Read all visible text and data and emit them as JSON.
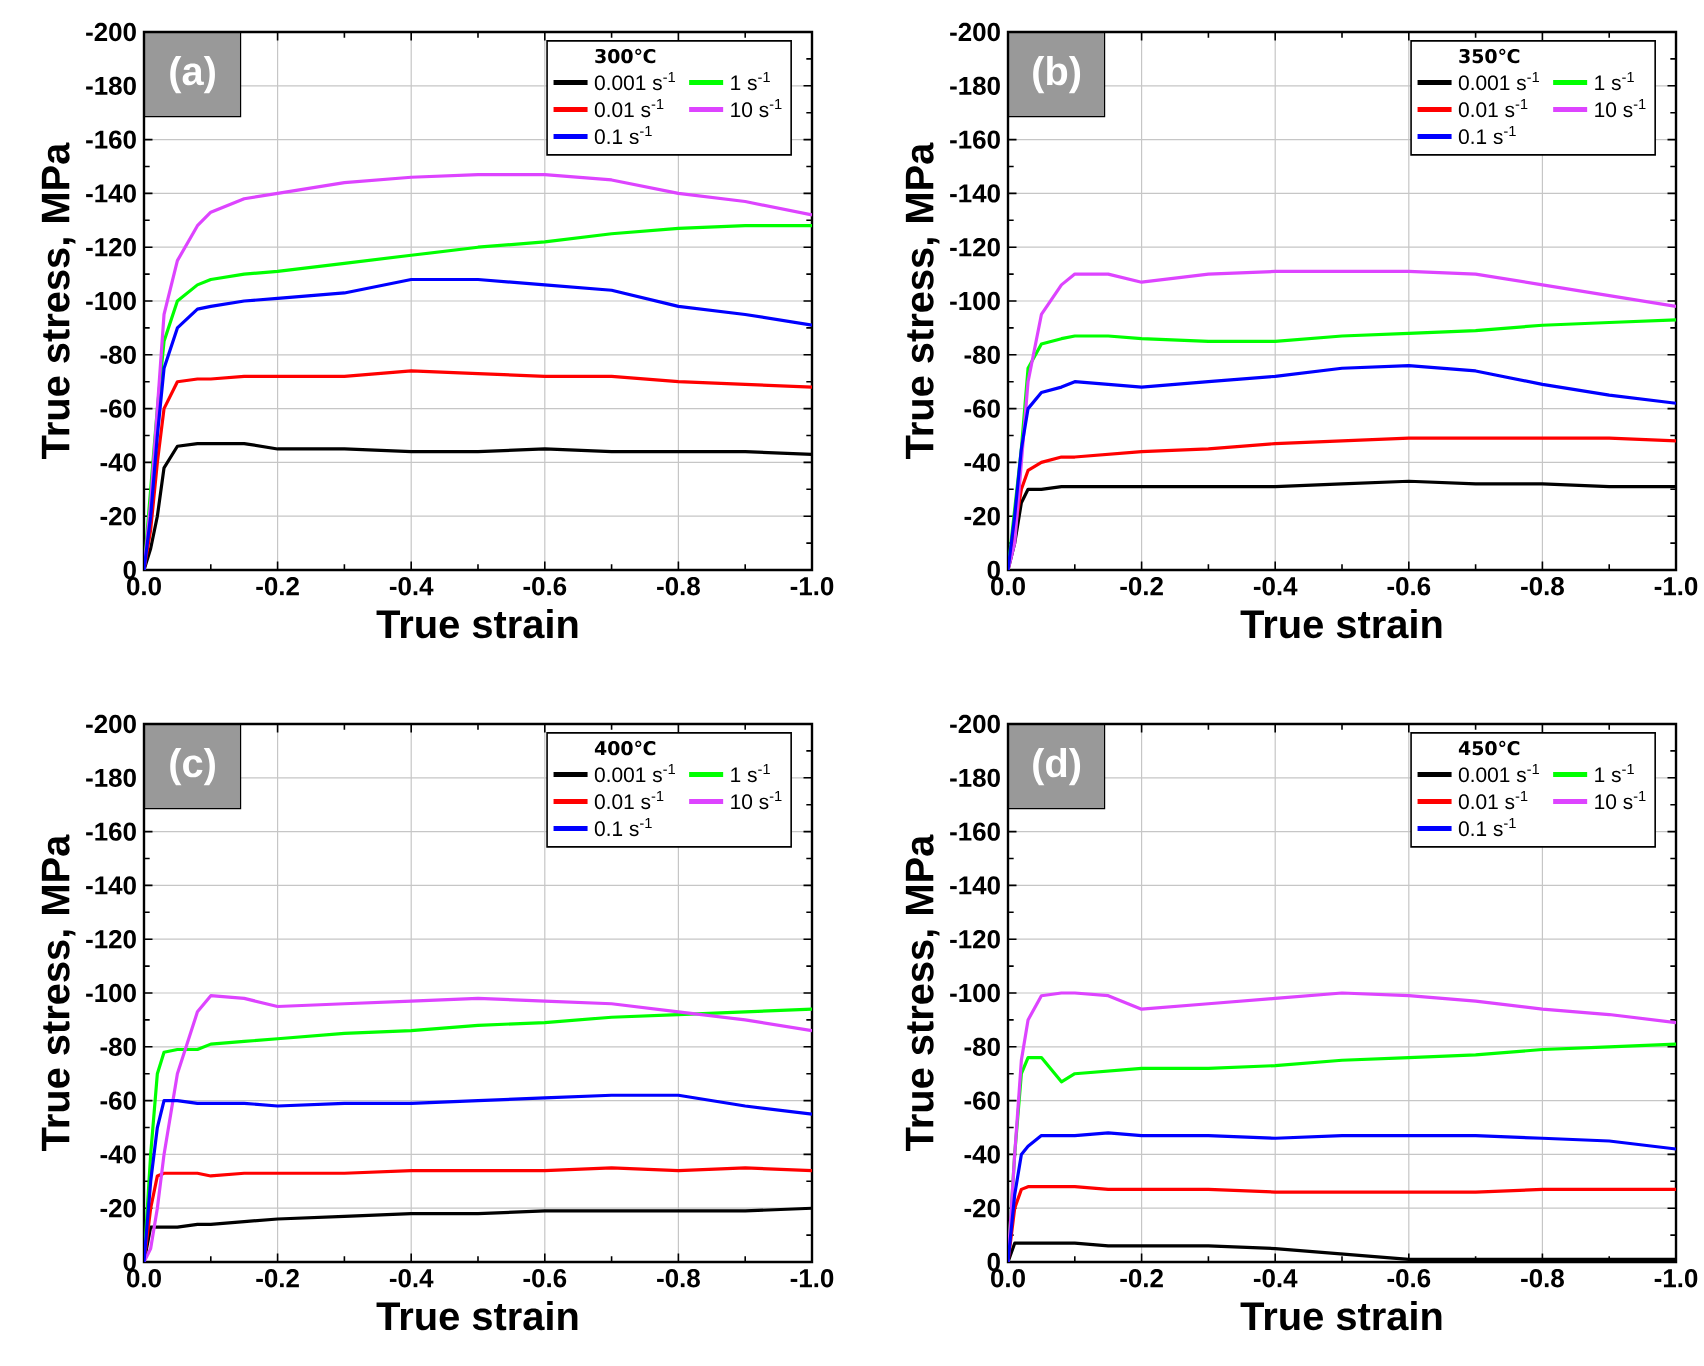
{
  "chart_data": [
    {
      "type": "line",
      "xlabel": "True strain",
      "ylabel": "True stress, MPa",
      "legend_title": "300℃",
      "annotations": [
        "(a)"
      ],
      "xlim": [
        0,
        -1.0
      ],
      "ylim": [
        0,
        -200
      ],
      "xticks": [
        {
          "value": 0,
          "label": "0.0"
        },
        {
          "value": -0.2,
          "label": "-0.2"
        },
        {
          "value": -0.4,
          "label": "-0.4"
        },
        {
          "value": -0.6,
          "label": "-0.6"
        },
        {
          "value": -0.8,
          "label": "-0.8"
        },
        {
          "value": -1.0,
          "label": "-1.0"
        }
      ],
      "yticks": [
        -200,
        -180,
        -160,
        -140,
        -120,
        -100,
        -80,
        -60,
        -40,
        -20,
        0
      ],
      "grid": true,
      "legend": "top right",
      "x": [
        0,
        -0.01,
        -0.02,
        -0.03,
        -0.05,
        -0.08,
        -0.1,
        -0.15,
        -0.2,
        -0.3,
        -0.4,
        -0.5,
        -0.6,
        -0.7,
        -0.8,
        -0.9,
        -1.0
      ],
      "series": [
        {
          "name": "0.001 s$^{-1}$",
          "color": "#000000",
          "values": [
            0,
            -8,
            -20,
            -38,
            -46,
            -47,
            -47,
            -47,
            -45,
            -45,
            -44,
            -44,
            -45,
            -44,
            -44,
            -44,
            -43
          ]
        },
        {
          "name": "0.01 s$^{-1}$",
          "color": "#ff0000",
          "values": [
            0,
            -15,
            -40,
            -60,
            -70,
            -71,
            -71,
            -72,
            -72,
            -72,
            -74,
            -73,
            -72,
            -72,
            -70,
            -69,
            -68
          ]
        },
        {
          "name": "0.1 s$^{-1}$",
          "color": "#0000ff",
          "values": [
            0,
            -20,
            -50,
            -75,
            -90,
            -97,
            -98,
            -100,
            -101,
            -103,
            -108,
            -108,
            -106,
            -104,
            -98,
            -95,
            -91
          ]
        },
        {
          "name": "1 s$^{-1}$",
          "color": "#00ff00",
          "values": [
            0,
            -30,
            -60,
            -85,
            -100,
            -106,
            -108,
            -110,
            -111,
            -114,
            -117,
            -120,
            -122,
            -125,
            -127,
            -128,
            -128
          ]
        },
        {
          "name": "10 s$^{-1}$",
          "color": "#dd44ff",
          "values": [
            0,
            -25,
            -60,
            -95,
            -115,
            -128,
            -133,
            -138,
            -140,
            -144,
            -146,
            -147,
            -147,
            -145,
            -140,
            -137,
            -132
          ]
        }
      ]
    },
    {
      "type": "line",
      "xlabel": "True strain",
      "ylabel": "True stress, MPa",
      "legend_title": "350℃",
      "annotations": [
        "(b)"
      ],
      "xlim": [
        0,
        -1.0
      ],
      "ylim": [
        0,
        -200
      ],
      "xticks": [
        {
          "value": 0,
          "label": "0.0"
        },
        {
          "value": -0.2,
          "label": "-0.2"
        },
        {
          "value": -0.4,
          "label": "-0.4"
        },
        {
          "value": -0.6,
          "label": "-0.6"
        },
        {
          "value": -0.8,
          "label": "-0.8"
        },
        {
          "value": -1.0,
          "label": "-1.0"
        }
      ],
      "yticks": [
        -200,
        -180,
        -160,
        -140,
        -120,
        -100,
        -80,
        -60,
        -40,
        -20,
        0
      ],
      "grid": true,
      "legend": "top right",
      "x": [
        0,
        -0.01,
        -0.02,
        -0.03,
        -0.05,
        -0.08,
        -0.1,
        -0.15,
        -0.2,
        -0.3,
        -0.4,
        -0.5,
        -0.6,
        -0.7,
        -0.8,
        -0.9,
        -1.0
      ],
      "series": [
        {
          "name": "0.001 s$^{-1}$",
          "color": "#000000",
          "values": [
            0,
            -10,
            -25,
            -30,
            -30,
            -31,
            -31,
            -31,
            -31,
            -31,
            -31,
            -32,
            -33,
            -32,
            -32,
            -31,
            -31
          ]
        },
        {
          "name": "0.01 s$^{-1}$",
          "color": "#ff0000",
          "values": [
            0,
            null,
            -30,
            -37,
            -40,
            -42,
            -42,
            -43,
            -44,
            -45,
            -47,
            -48,
            -49,
            -49,
            -49,
            -49,
            -48
          ]
        },
        {
          "name": "0.1 s$^{-1}$",
          "color": "#0000ff",
          "values": [
            0,
            -20,
            -45,
            -60,
            -66,
            -68,
            -70,
            -69,
            -68,
            -70,
            -72,
            -75,
            -76,
            -74,
            -69,
            -65,
            -62
          ]
        },
        {
          "name": "1 s$^{-1}$",
          "color": "#00ff00",
          "values": [
            0,
            null,
            -45,
            -75,
            -84,
            -86,
            -87,
            -87,
            -86,
            -85,
            -85,
            -87,
            -88,
            -89,
            -91,
            -92,
            -93
          ]
        },
        {
          "name": "10 s$^{-1}$",
          "color": "#dd44ff",
          "values": [
            0,
            -10,
            -40,
            -70,
            -95,
            -106,
            -110,
            -110,
            -107,
            -110,
            -111,
            -111,
            -111,
            -110,
            -106,
            -102,
            -98
          ]
        }
      ]
    },
    {
      "type": "line",
      "xlabel": "True strain",
      "ylabel": "True stress, MPa",
      "legend_title": "400℃",
      "annotations": [
        "(c)"
      ],
      "xlim": [
        0,
        -1.0
      ],
      "ylim": [
        0,
        -200
      ],
      "xticks": [
        {
          "value": 0,
          "label": "0.0"
        },
        {
          "value": -0.2,
          "label": "-0.2"
        },
        {
          "value": -0.4,
          "label": "-0.4"
        },
        {
          "value": -0.6,
          "label": "-0.6"
        },
        {
          "value": -0.8,
          "label": "-0.8"
        },
        {
          "value": -1.0,
          "label": "-1.0"
        }
      ],
      "yticks": [
        -200,
        -180,
        -160,
        -140,
        -120,
        -100,
        -80,
        -60,
        -40,
        -20,
        0
      ],
      "grid": true,
      "legend": "top right",
      "x": [
        0,
        -0.01,
        -0.02,
        -0.03,
        -0.05,
        -0.08,
        -0.1,
        -0.15,
        -0.2,
        -0.3,
        -0.4,
        -0.5,
        -0.6,
        -0.7,
        -0.8,
        -0.9,
        -1.0
      ],
      "series": [
        {
          "name": "0.001 s$^{-1}$",
          "color": "#000000",
          "values": [
            0,
            -13,
            -13,
            -13,
            -13,
            -14,
            -14,
            -15,
            -16,
            -17,
            -18,
            -18,
            -19,
            -19,
            -19,
            -19,
            -20
          ]
        },
        {
          "name": "0.01 s$^{-1}$",
          "color": "#ff0000",
          "values": [
            0,
            -20,
            -32,
            -33,
            -33,
            -33,
            -32,
            -33,
            -33,
            -33,
            -34,
            -34,
            -34,
            -35,
            -34,
            -35,
            -34
          ]
        },
        {
          "name": "0.1 s$^{-1}$",
          "color": "#0000ff",
          "values": [
            0,
            -30,
            -50,
            -60,
            -60,
            -59,
            -59,
            -59,
            -58,
            -59,
            -59,
            -60,
            -61,
            -62,
            -62,
            -58,
            -55
          ]
        },
        {
          "name": "1 s$^{-1}$",
          "color": "#00ff00",
          "values": [
            0,
            -40,
            -70,
            -78,
            -79,
            -79,
            -81,
            -82,
            -83,
            -85,
            -86,
            -88,
            -89,
            -91,
            -92,
            -93,
            -94
          ]
        },
        {
          "name": "10 s$^{-1}$",
          "color": "#dd44ff",
          "values": [
            0,
            -5,
            -20,
            -40,
            -70,
            -93,
            -99,
            -98,
            -95,
            -96,
            -97,
            -98,
            -97,
            -96,
            -93,
            -90,
            -86
          ]
        }
      ]
    },
    {
      "type": "line",
      "xlabel": "True strain",
      "ylabel": "True stress, MPa",
      "legend_title": "450℃",
      "annotations": [
        "(d)"
      ],
      "xlim": [
        0,
        -1.0
      ],
      "ylim": [
        0,
        -200
      ],
      "xticks": [
        {
          "value": 0,
          "label": "0.0"
        },
        {
          "value": -0.2,
          "label": "-0.2"
        },
        {
          "value": -0.4,
          "label": "-0.4"
        },
        {
          "value": -0.6,
          "label": "-0.6"
        },
        {
          "value": -0.8,
          "label": "-0.8"
        },
        {
          "value": -1.0,
          "label": "-1.0"
        }
      ],
      "yticks": [
        -200,
        -180,
        -160,
        -140,
        -120,
        -100,
        -80,
        -60,
        -40,
        -20,
        0
      ],
      "grid": true,
      "legend": "top right",
      "x": [
        0,
        -0.01,
        -0.02,
        -0.03,
        -0.05,
        -0.08,
        -0.1,
        -0.15,
        -0.2,
        -0.3,
        -0.4,
        -0.5,
        -0.6,
        -0.7,
        -0.8,
        -0.9,
        -1.0
      ],
      "series": [
        {
          "name": "0.001 s$^{-1}$",
          "color": "#000000",
          "values": [
            0,
            -7,
            -7,
            -7,
            -7,
            -7,
            -7,
            -6,
            -6,
            -6,
            -5,
            -3,
            -1,
            -1,
            -1,
            -1,
            -1
          ]
        },
        {
          "name": "0.01 s$^{-1}$",
          "color": "#ff0000",
          "values": [
            0,
            -20,
            -27,
            -28,
            -28,
            -28,
            -28,
            -27,
            -27,
            -27,
            -26,
            -26,
            -26,
            -26,
            -27,
            -27,
            -27
          ]
        },
        {
          "name": "0.1 s$^{-1}$",
          "color": "#0000ff",
          "values": [
            0,
            -25,
            -40,
            -43,
            -47,
            -47,
            -47,
            -48,
            -47,
            -47,
            -46,
            -47,
            -47,
            -47,
            -46,
            -45,
            -42
          ]
        },
        {
          "name": "1 s$^{-1}$",
          "color": "#00ff00",
          "values": [
            0,
            -40,
            -70,
            -76,
            -76,
            -67,
            -70,
            -71,
            -72,
            -72,
            -73,
            -75,
            -76,
            -77,
            -79,
            -80,
            -81
          ]
        },
        {
          "name": "10 s$^{-1}$",
          "color": "#dd44ff",
          "values": [
            0,
            -40,
            -75,
            -90,
            -99,
            -100,
            -100,
            -99,
            -94,
            -96,
            -98,
            -100,
            -99,
            -97,
            -94,
            -92,
            -89
          ]
        }
      ]
    }
  ]
}
